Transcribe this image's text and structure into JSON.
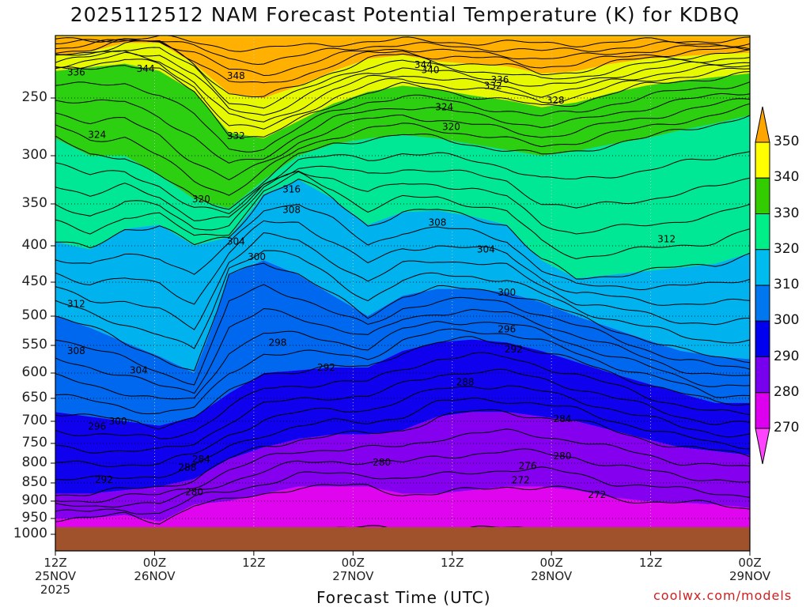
{
  "chart_data": {
    "type": "heatmap",
    "title": "2025112512 NAM Forecast Potential Temperature (K) for KDBQ",
    "xlabel": "Forecast Time (UTC)",
    "ylabel": "",
    "credit": "coolwx.com/models",
    "y_ticks": [
      "250",
      "300",
      "350",
      "400",
      "450",
      "500",
      "550",
      "600",
      "650",
      "700",
      "750",
      "800",
      "850",
      "900",
      "950",
      "1000"
    ],
    "x_ticks": [
      {
        "hour": "12Z",
        "day": "25NOV",
        "year": "2025"
      },
      {
        "hour": "00Z",
        "day": "26NOV",
        "year": ""
      },
      {
        "hour": "12Z",
        "day": "",
        "year": ""
      },
      {
        "hour": "00Z",
        "day": "27NOV",
        "year": ""
      },
      {
        "hour": "12Z",
        "day": "",
        "year": ""
      },
      {
        "hour": "00Z",
        "day": "28NOV",
        "year": ""
      },
      {
        "hour": "12Z",
        "day": "",
        "year": ""
      },
      {
        "hour": "00Z",
        "day": "29NOV",
        "year": ""
      }
    ],
    "colorbar_labels": [
      "350",
      "340",
      "330",
      "320",
      "310",
      "300",
      "290",
      "280",
      "270"
    ],
    "colorbar_colors": [
      "#ffa500",
      "#ffff00",
      "#33cc00",
      "#00ee88",
      "#00bbee",
      "#0077ee",
      "#0000ee",
      "#7700ee",
      "#dd00ee",
      "#ff44ff"
    ],
    "terrain_color": "#a0522d",
    "contour_labels": [
      {
        "text": "344",
        "t": 0.13,
        "p": 226
      },
      {
        "text": "336",
        "t": 0.03,
        "p": 229
      },
      {
        "text": "348",
        "t": 0.26,
        "p": 232
      },
      {
        "text": "344",
        "t": 0.53,
        "p": 223
      },
      {
        "text": "340",
        "t": 0.54,
        "p": 227
      },
      {
        "text": "336",
        "t": 0.64,
        "p": 235
      },
      {
        "text": "332",
        "t": 0.63,
        "p": 240
      },
      {
        "text": "328",
        "t": 0.72,
        "p": 252
      },
      {
        "text": "324",
        "t": 0.56,
        "p": 258
      },
      {
        "text": "320",
        "t": 0.57,
        "p": 275
      },
      {
        "text": "324",
        "t": 0.06,
        "p": 282
      },
      {
        "text": "332",
        "t": 0.26,
        "p": 283
      },
      {
        "text": "316",
        "t": 0.34,
        "p": 335
      },
      {
        "text": "320",
        "t": 0.21,
        "p": 345
      },
      {
        "text": "308",
        "t": 0.34,
        "p": 357
      },
      {
        "text": "308",
        "t": 0.55,
        "p": 372
      },
      {
        "text": "312",
        "t": 0.88,
        "p": 392
      },
      {
        "text": "304",
        "t": 0.26,
        "p": 395
      },
      {
        "text": "304",
        "t": 0.62,
        "p": 405
      },
      {
        "text": "300",
        "t": 0.29,
        "p": 415
      },
      {
        "text": "300",
        "t": 0.65,
        "p": 465
      },
      {
        "text": "312",
        "t": 0.03,
        "p": 482
      },
      {
        "text": "296",
        "t": 0.65,
        "p": 522
      },
      {
        "text": "308",
        "t": 0.03,
        "p": 560
      },
      {
        "text": "298",
        "t": 0.32,
        "p": 545
      },
      {
        "text": "292",
        "t": 0.66,
        "p": 557
      },
      {
        "text": "292",
        "t": 0.39,
        "p": 590
      },
      {
        "text": "304",
        "t": 0.12,
        "p": 595
      },
      {
        "text": "288",
        "t": 0.59,
        "p": 618
      },
      {
        "text": "284",
        "t": 0.73,
        "p": 695
      },
      {
        "text": "300",
        "t": 0.09,
        "p": 700
      },
      {
        "text": "296",
        "t": 0.06,
        "p": 712
      },
      {
        "text": "284",
        "t": 0.21,
        "p": 790
      },
      {
        "text": "280",
        "t": 0.47,
        "p": 798
      },
      {
        "text": "280",
        "t": 0.73,
        "p": 782
      },
      {
        "text": "288",
        "t": 0.19,
        "p": 811
      },
      {
        "text": "276",
        "t": 0.68,
        "p": 807
      },
      {
        "text": "292",
        "t": 0.07,
        "p": 842
      },
      {
        "text": "272",
        "t": 0.67,
        "p": 843
      },
      {
        "text": "280",
        "t": 0.2,
        "p": 875
      },
      {
        "text": "272",
        "t": 0.78,
        "p": 883
      }
    ]
  }
}
